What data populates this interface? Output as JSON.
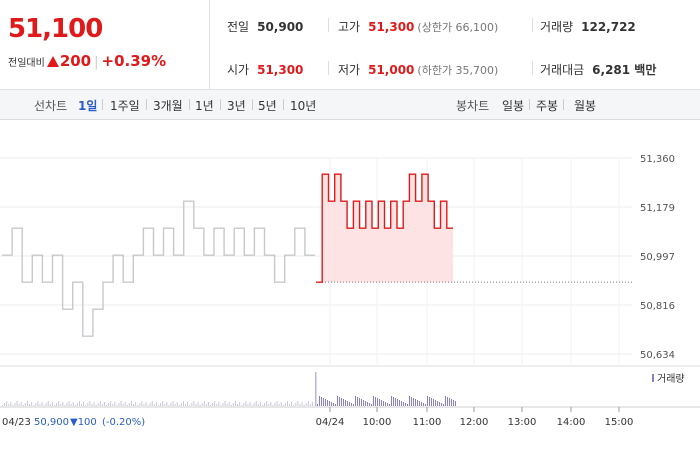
{
  "header": {
    "price": "51,100",
    "change_label": "전일대비",
    "change_value": "200",
    "change_pct": "+0.39%",
    "prev_close_label": "전일",
    "prev_close": "50,900",
    "open_label": "시가",
    "open": "51,300",
    "high_label": "고가",
    "high": "51,300",
    "upper_limit": "(상한가 66,100)",
    "low_label": "저가",
    "low": "51,000",
    "lower_limit": "(하한가 35,700)",
    "volume_label": "거래량",
    "volume": "122,722",
    "value_label": "거래대금",
    "value": "6,281 백만"
  },
  "tabs": {
    "line_label": "선차트",
    "line_periods": [
      "1일",
      "1주일",
      "3개월",
      "1년",
      "3년",
      "5년",
      "10년"
    ],
    "selected": "1일",
    "candle_label": "봉차트",
    "candle_periods": [
      "일봉",
      "주봉",
      "월봉"
    ]
  },
  "colors": {
    "up": "#e01a1a",
    "down": "#2b5cc7",
    "prev_day_line": "#c8c9cc",
    "fill": "#fde3e3"
  },
  "chart_data": {
    "type": "line",
    "y_ticks": [
      "51,360",
      "51,179",
      "50,997",
      "50,816",
      "50,634"
    ],
    "ylim": [
      50634,
      51360
    ],
    "x_ticks": [
      "04/24",
      "10:00",
      "11:00",
      "12:00",
      "13:00",
      "14:00",
      "15:00"
    ],
    "baseline": 50900,
    "volume_legend": "거래량",
    "prev_day_summary": {
      "date": "04/23",
      "close": "50,900",
      "change": "▼100",
      "pct": "(-0.20%)"
    },
    "series": [
      {
        "values": [
          51000,
          51100,
          50900,
          51000,
          50900,
          51000,
          50800,
          50900,
          50700,
          50800,
          50900,
          51000,
          50900,
          51000,
          51100,
          51000,
          51100,
          51000,
          51200,
          51100,
          51000,
          51100,
          51000,
          51100,
          51000,
          51100,
          51000,
          50900,
          51000,
          51100,
          51000
        ]
      },
      {
        "values": [
          50900,
          51300,
          51200,
          51300,
          51200,
          51100,
          51200,
          51100,
          51200,
          51100,
          51200,
          51100,
          51200,
          51100,
          51200,
          51300,
          51200,
          51300,
          51200,
          51100,
          51200,
          51100
        ]
      }
    ]
  }
}
